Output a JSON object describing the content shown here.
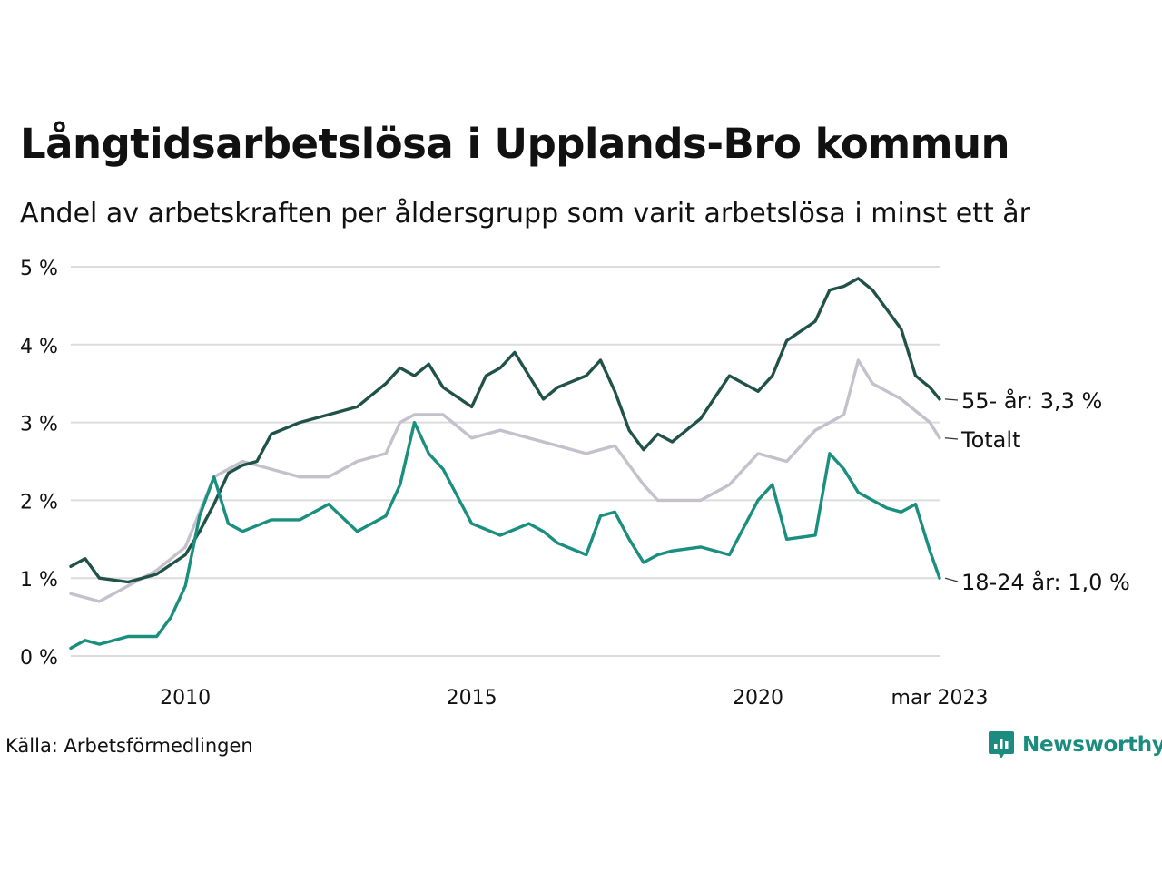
{
  "title": "Långtidsarbetslösa i Upplands-Bro kommun",
  "subtitle": "Andel av arbetskraften per åldersgrupp som varit arbetslösa i minst ett år",
  "source": "Källa: Arbetsförmedlingen",
  "brand": {
    "name": "Newsworthy",
    "icon": "newsworthy-logo-icon",
    "color": "#1c8c80"
  },
  "chart_data": {
    "type": "line",
    "y_ticks": [
      {
        "value": 0,
        "label": "0 %"
      },
      {
        "value": 1,
        "label": "1 %"
      },
      {
        "value": 2,
        "label": "2 %"
      },
      {
        "value": 3,
        "label": "3 %"
      },
      {
        "value": 4,
        "label": "4 %"
      },
      {
        "value": 5,
        "label": "5 %"
      }
    ],
    "x_ticks": [
      {
        "value": 2010.0,
        "label": "2010"
      },
      {
        "value": 2015.0,
        "label": "2015"
      },
      {
        "value": 2020.0,
        "label": "2020"
      },
      {
        "value": 2023.17,
        "label": "mar 2023"
      }
    ],
    "xlim": [
      2008.0,
      2023.17
    ],
    "ylim": [
      0,
      5
    ],
    "grid": true,
    "series": [
      {
        "name": "Totalt",
        "end_label": "Totalt",
        "color": "#c4c1cc",
        "x": [
          2008.0,
          2008.5,
          2009.0,
          2009.5,
          2010.0,
          2010.5,
          2011.0,
          2011.5,
          2012.0,
          2012.5,
          2013.0,
          2013.5,
          2013.75,
          2014.0,
          2014.5,
          2015.0,
          2015.5,
          2016.0,
          2016.5,
          2017.0,
          2017.5,
          2018.0,
          2018.25,
          2018.5,
          2019.0,
          2019.5,
          2020.0,
          2020.5,
          2021.0,
          2021.5,
          2021.75,
          2022.0,
          2022.5,
          2023.0,
          2023.17
        ],
        "values": [
          0.8,
          0.7,
          0.9,
          1.1,
          1.4,
          2.3,
          2.5,
          2.4,
          2.3,
          2.3,
          2.5,
          2.6,
          3.0,
          3.1,
          3.1,
          2.8,
          2.9,
          2.8,
          2.7,
          2.6,
          2.7,
          2.2,
          2.0,
          2.0,
          2.0,
          2.2,
          2.6,
          2.5,
          2.9,
          3.1,
          3.8,
          3.5,
          3.3,
          3.0,
          2.8
        ]
      },
      {
        "name": "55- år",
        "end_label": "55- år: 3,3 %",
        "color": "#20524a",
        "x": [
          2008.0,
          2008.25,
          2008.5,
          2009.0,
          2009.5,
          2010.0,
          2010.25,
          2010.5,
          2010.75,
          2011.0,
          2011.25,
          2011.5,
          2012.0,
          2012.5,
          2013.0,
          2013.5,
          2013.75,
          2014.0,
          2014.25,
          2014.5,
          2015.0,
          2015.25,
          2015.5,
          2015.75,
          2016.0,
          2016.25,
          2016.5,
          2017.0,
          2017.25,
          2017.5,
          2017.75,
          2018.0,
          2018.25,
          2018.5,
          2019.0,
          2019.5,
          2020.0,
          2020.25,
          2020.5,
          2021.0,
          2021.25,
          2021.5,
          2021.75,
          2022.0,
          2022.25,
          2022.5,
          2022.75,
          2023.0,
          2023.17
        ],
        "values": [
          1.15,
          1.25,
          1.0,
          0.95,
          1.05,
          1.3,
          1.6,
          1.95,
          2.35,
          2.45,
          2.5,
          2.85,
          3.0,
          3.1,
          3.2,
          3.5,
          3.7,
          3.6,
          3.75,
          3.45,
          3.2,
          3.6,
          3.7,
          3.9,
          3.6,
          3.3,
          3.45,
          3.6,
          3.8,
          3.4,
          2.9,
          2.65,
          2.85,
          2.75,
          3.05,
          3.6,
          3.4,
          3.6,
          4.05,
          4.3,
          4.7,
          4.75,
          4.85,
          4.7,
          4.45,
          4.2,
          3.6,
          3.45,
          3.3
        ]
      },
      {
        "name": "18-24 år",
        "end_label": "18-24 år: 1,0 %",
        "color": "#1a8f7f",
        "x": [
          2008.0,
          2008.25,
          2008.5,
          2009.0,
          2009.5,
          2009.75,
          2010.0,
          2010.25,
          2010.5,
          2010.75,
          2011.0,
          2011.5,
          2012.0,
          2012.5,
          2013.0,
          2013.5,
          2013.75,
          2014.0,
          2014.25,
          2014.5,
          2015.0,
          2015.5,
          2016.0,
          2016.25,
          2016.5,
          2017.0,
          2017.25,
          2017.5,
          2017.75,
          2018.0,
          2018.25,
          2018.5,
          2019.0,
          2019.5,
          2020.0,
          2020.25,
          2020.5,
          2021.0,
          2021.25,
          2021.5,
          2021.75,
          2022.0,
          2022.25,
          2022.5,
          2022.75,
          2023.0,
          2023.17
        ],
        "values": [
          0.1,
          0.2,
          0.15,
          0.25,
          0.25,
          0.5,
          0.9,
          1.8,
          2.3,
          1.7,
          1.6,
          1.75,
          1.75,
          1.95,
          1.6,
          1.8,
          2.2,
          3.0,
          2.6,
          2.4,
          1.7,
          1.55,
          1.7,
          1.6,
          1.45,
          1.3,
          1.8,
          1.85,
          1.5,
          1.2,
          1.3,
          1.35,
          1.4,
          1.3,
          2.0,
          2.2,
          1.5,
          1.55,
          2.6,
          2.4,
          2.1,
          2.0,
          1.9,
          1.85,
          1.95,
          1.35,
          1.0
        ]
      }
    ]
  }
}
